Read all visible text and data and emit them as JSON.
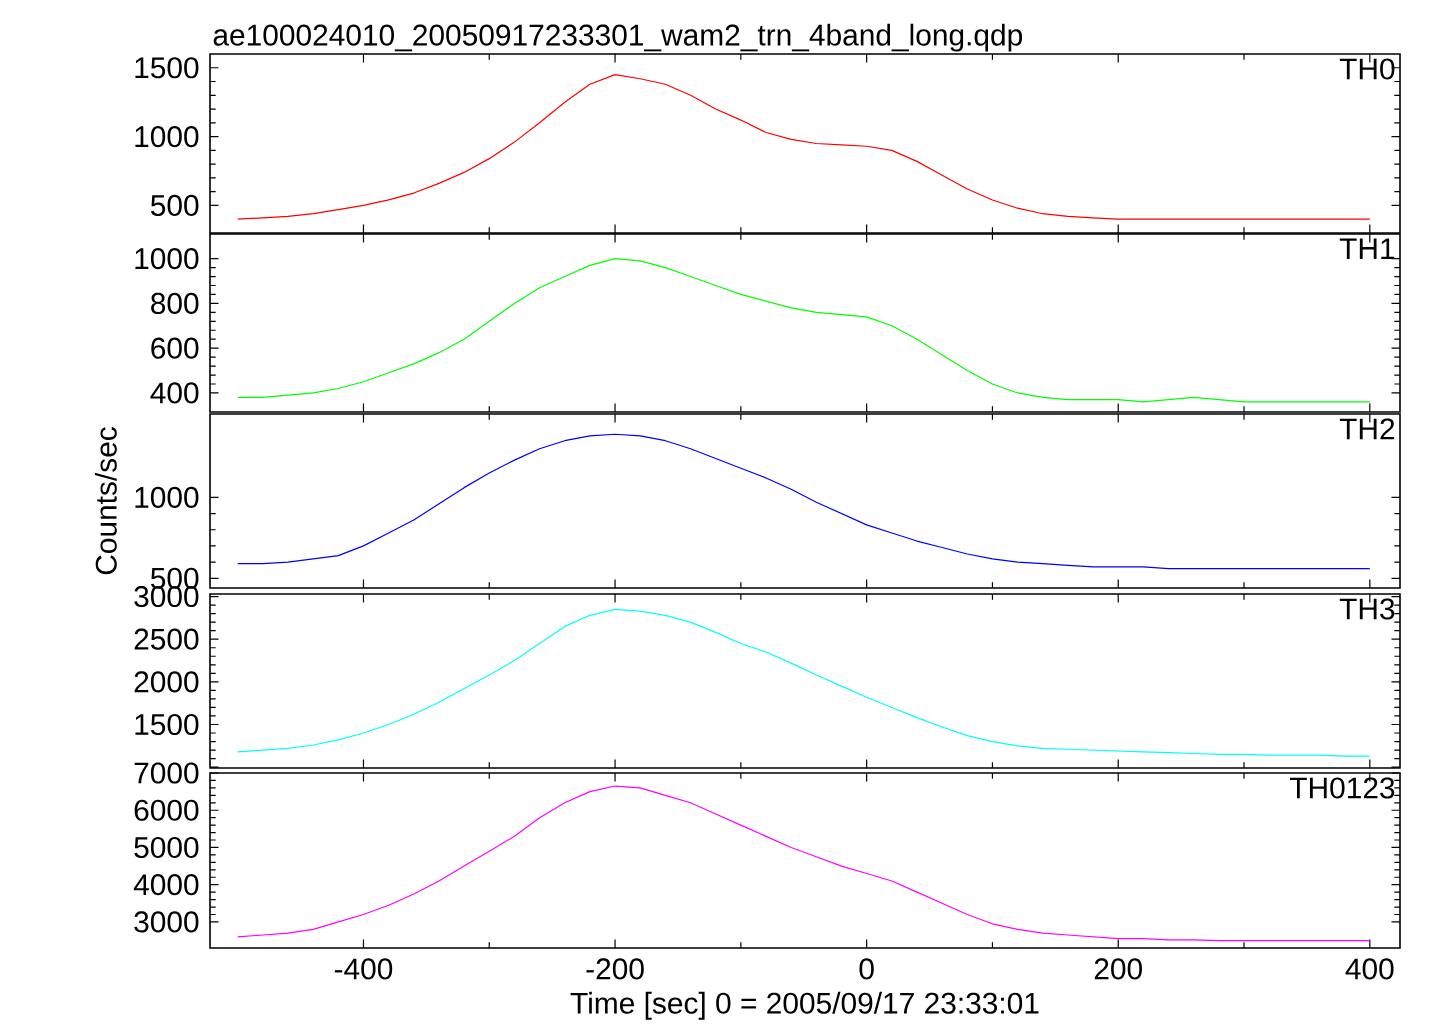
{
  "chart_data": [
    {
      "type": "line",
      "title": "ae100024010_20050917233301_wam2_trn_4band_long.qdp",
      "annotations": [
        "TH0"
      ],
      "xlim": [
        -522,
        424
      ],
      "ylim": [
        300,
        1600
      ],
      "xticks": [
        -400,
        -200,
        0,
        200,
        400
      ],
      "yticks": [
        500,
        1000,
        1500
      ],
      "tick_labels": "y",
      "marker": "none",
      "x": [
        -500,
        -480,
        -460,
        -440,
        -420,
        -400,
        -380,
        -360,
        -340,
        -320,
        -300,
        -280,
        -260,
        -240,
        -220,
        -200,
        -180,
        -160,
        -140,
        -120,
        -100,
        -80,
        -60,
        -40,
        -20,
        0,
        20,
        40,
        60,
        80,
        100,
        120,
        140,
        160,
        180,
        200,
        220,
        240,
        260,
        280,
        300,
        320,
        340,
        360,
        380,
        400
      ],
      "series": [
        {
          "color": "#ff0000",
          "values": [
            400,
            410,
            420,
            440,
            470,
            500,
            540,
            590,
            660,
            740,
            840,
            960,
            1100,
            1250,
            1380,
            1450,
            1420,
            1380,
            1300,
            1200,
            1120,
            1030,
            980,
            950,
            940,
            930,
            900,
            820,
            720,
            620,
            540,
            480,
            440,
            420,
            410,
            400,
            400,
            400,
            400,
            400,
            400,
            400,
            400,
            400,
            400,
            400
          ]
        }
      ]
    },
    {
      "type": "line",
      "annotations": [
        "TH1"
      ],
      "xlim": [
        -522,
        424
      ],
      "ylim": [
        315,
        1110
      ],
      "xticks": [
        -400,
        -200,
        0,
        200,
        400
      ],
      "yticks": [
        400,
        600,
        800,
        1000
      ],
      "tick_labels": "y",
      "marker": "none",
      "x": [
        -500,
        -480,
        -460,
        -440,
        -420,
        -400,
        -380,
        -360,
        -340,
        -320,
        -300,
        -280,
        -260,
        -240,
        -220,
        -200,
        -180,
        -160,
        -140,
        -120,
        -100,
        -80,
        -60,
        -40,
        -20,
        0,
        20,
        40,
        60,
        80,
        100,
        120,
        140,
        160,
        180,
        200,
        220,
        240,
        260,
        280,
        300,
        320,
        340,
        360,
        380,
        400
      ],
      "series": [
        {
          "color": "#00ff00",
          "values": [
            380,
            380,
            390,
            400,
            420,
            450,
            490,
            530,
            580,
            640,
            720,
            800,
            870,
            920,
            970,
            1000,
            990,
            960,
            920,
            880,
            840,
            810,
            780,
            760,
            750,
            740,
            700,
            640,
            570,
            500,
            440,
            400,
            380,
            370,
            370,
            370,
            360,
            370,
            380,
            370,
            360,
            360,
            360,
            360,
            360,
            360
          ]
        }
      ]
    },
    {
      "type": "line",
      "annotations": [
        "TH2"
      ],
      "ylabel": "Counts/sec",
      "xlim": [
        -522,
        424
      ],
      "ylim": [
        440,
        1515
      ],
      "xticks": [
        -400,
        -200,
        0,
        200,
        400
      ],
      "yticks": [
        500,
        1000
      ],
      "tick_labels": "y",
      "marker": "none",
      "x": [
        -500,
        -480,
        -460,
        -440,
        -420,
        -400,
        -380,
        -360,
        -340,
        -320,
        -300,
        -280,
        -260,
        -240,
        -220,
        -200,
        -180,
        -160,
        -140,
        -120,
        -100,
        -80,
        -60,
        -40,
        -20,
        0,
        20,
        40,
        60,
        80,
        100,
        120,
        140,
        160,
        180,
        200,
        220,
        240,
        260,
        280,
        300,
        320,
        340,
        360,
        380,
        400
      ],
      "series": [
        {
          "color": "#0000ff",
          "values": [
            590,
            590,
            600,
            620,
            640,
            700,
            780,
            860,
            960,
            1060,
            1150,
            1230,
            1300,
            1350,
            1380,
            1390,
            1380,
            1350,
            1300,
            1240,
            1180,
            1120,
            1050,
            970,
            900,
            830,
            780,
            730,
            690,
            650,
            620,
            600,
            590,
            580,
            570,
            570,
            570,
            560,
            560,
            560,
            560,
            560,
            560,
            560,
            560,
            560
          ]
        }
      ]
    },
    {
      "type": "line",
      "annotations": [
        "TH3"
      ],
      "xlim": [
        -522,
        424
      ],
      "ylim": [
        990,
        3030
      ],
      "xticks": [
        -400,
        -200,
        0,
        200,
        400
      ],
      "yticks": [
        {
          "value": 1000,
          "label": null
        },
        1500,
        2000,
        2500,
        3000
      ],
      "tick_labels": "y",
      "marker": "none",
      "x": [
        -500,
        -480,
        -460,
        -440,
        -420,
        -400,
        -380,
        -360,
        -340,
        -320,
        -300,
        -280,
        -260,
        -240,
        -220,
        -200,
        -180,
        -160,
        -140,
        -120,
        -100,
        -80,
        -60,
        -40,
        -20,
        0,
        20,
        40,
        60,
        80,
        100,
        120,
        140,
        160,
        180,
        200,
        220,
        240,
        260,
        280,
        300,
        320,
        340,
        360,
        380,
        400
      ],
      "series": [
        {
          "color": "#00ffff",
          "values": [
            1180,
            1200,
            1220,
            1260,
            1320,
            1400,
            1500,
            1620,
            1760,
            1920,
            2080,
            2250,
            2450,
            2650,
            2780,
            2850,
            2830,
            2780,
            2700,
            2580,
            2450,
            2350,
            2220,
            2080,
            1950,
            1820,
            1700,
            1580,
            1470,
            1370,
            1300,
            1250,
            1220,
            1210,
            1200,
            1190,
            1180,
            1170,
            1160,
            1150,
            1150,
            1140,
            1140,
            1140,
            1130,
            1130
          ]
        }
      ]
    },
    {
      "type": "line",
      "annotations": [
        "TH0123"
      ],
      "xlabel": "Time [sec] 0 = 2005/09/17 23:33:01",
      "xlim": [
        -522,
        424
      ],
      "ylim": [
        2300,
        7000
      ],
      "xticks": [
        -400,
        -200,
        0,
        200,
        400
      ],
      "yticks": [
        3000,
        4000,
        5000,
        6000,
        7000
      ],
      "marker": "none",
      "x": [
        -500,
        -480,
        -460,
        -440,
        -420,
        -400,
        -380,
        -360,
        -340,
        -320,
        -300,
        -280,
        -260,
        -240,
        -220,
        -200,
        -180,
        -160,
        -140,
        -120,
        -100,
        -80,
        -60,
        -40,
        -20,
        0,
        20,
        40,
        60,
        80,
        100,
        120,
        140,
        160,
        180,
        200,
        220,
        240,
        260,
        280,
        300,
        320,
        340,
        360,
        380,
        400
      ],
      "series": [
        {
          "color": "#ff00ff",
          "values": [
            2600,
            2650,
            2700,
            2800,
            3000,
            3200,
            3450,
            3750,
            4100,
            4500,
            4900,
            5300,
            5800,
            6200,
            6500,
            6650,
            6600,
            6400,
            6200,
            5900,
            5600,
            5300,
            5000,
            4750,
            4500,
            4300,
            4100,
            3800,
            3500,
            3200,
            2950,
            2800,
            2700,
            2650,
            2600,
            2550,
            2550,
            2520,
            2520,
            2500,
            2500,
            2500,
            2500,
            2500,
            2500,
            2500
          ]
        }
      ]
    }
  ]
}
